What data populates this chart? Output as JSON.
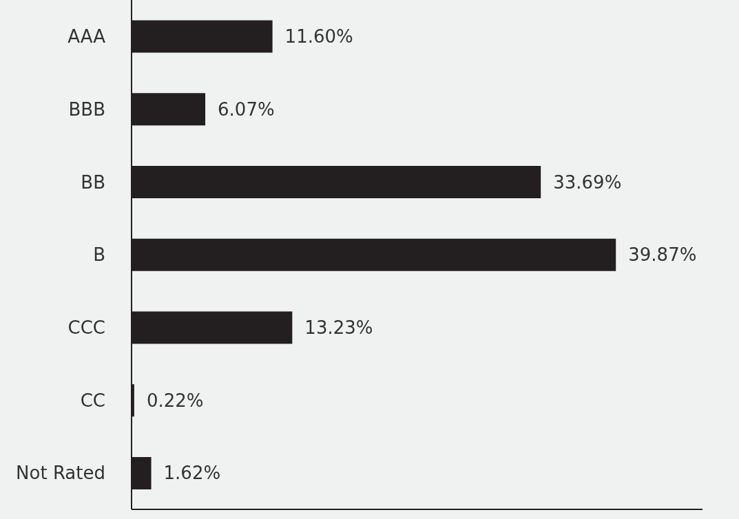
{
  "chart_data": {
    "type": "bar",
    "orientation": "horizontal",
    "categories": [
      "AAA",
      "BBB",
      "BB",
      "B",
      "CCC",
      "CC",
      "Not Rated"
    ],
    "values": [
      11.6,
      6.07,
      33.69,
      39.87,
      13.23,
      0.22,
      1.62
    ],
    "value_labels": [
      "11.60%",
      "6.07%",
      "33.69%",
      "39.87%",
      "13.23%",
      "0.22%",
      "1.62%"
    ],
    "color": "#231f20",
    "xlim": [
      0,
      47
    ],
    "tick_labels": "y"
  }
}
